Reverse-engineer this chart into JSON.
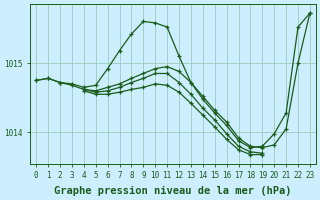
{
  "title": "Graphe pression niveau de la mer (hPa)",
  "bg_color": "#cceeff",
  "plot_bg_color": "#cceeff",
  "grid_color": "#99ccbb",
  "line_color": "#1a5c1a",
  "marker_color": "#1a5c1a",
  "xlim": [
    -0.5,
    23.5
  ],
  "ylim": [
    1013.55,
    1015.85
  ],
  "yticks": [
    1014,
    1015
  ],
  "xticks": [
    0,
    1,
    2,
    3,
    4,
    5,
    6,
    7,
    8,
    9,
    10,
    11,
    12,
    13,
    14,
    15,
    16,
    17,
    18,
    19,
    20,
    21,
    22,
    23
  ],
  "series": [
    {
      "x": [
        0,
        1,
        2,
        3,
        4,
        5,
        6,
        7,
        8,
        9,
        10,
        11,
        12,
        13,
        14,
        15,
        16,
        17,
        18,
        19,
        20,
        21,
        22,
        23
      ],
      "y": [
        1014.75,
        1014.78,
        1014.72,
        1014.7,
        1014.65,
        1014.68,
        1014.92,
        1015.18,
        1015.42,
        1015.6,
        1015.58,
        1015.52,
        1015.1,
        1014.72,
        1014.48,
        1014.28,
        1014.1,
        1013.88,
        1013.78,
        1013.8,
        1013.98,
        1014.28,
        1015.52,
        1015.72
      ]
    },
    {
      "x": [
        0,
        1,
        2,
        3,
        4,
        5,
        6,
        7,
        8,
        9,
        10,
        11,
        12,
        13,
        14,
        15,
        16,
        17,
        18,
        19,
        20,
        21,
        22,
        23
      ],
      "y": [
        1014.75,
        1014.78,
        1014.72,
        1014.68,
        1014.62,
        1014.6,
        1014.65,
        1014.7,
        1014.78,
        1014.85,
        1014.92,
        1014.95,
        1014.88,
        1014.72,
        1014.52,
        1014.32,
        1014.15,
        1013.92,
        1013.8,
        1013.78,
        1013.82,
        1014.05,
        1015.0,
        1015.72
      ]
    },
    {
      "x": [
        4,
        5,
        6,
        7,
        8,
        9,
        10,
        11,
        12,
        13,
        14,
        15,
        16,
        17,
        18,
        19
      ],
      "y": [
        1014.62,
        1014.58,
        1014.6,
        1014.65,
        1014.72,
        1014.78,
        1014.85,
        1014.85,
        1014.72,
        1014.55,
        1014.35,
        1014.18,
        1013.98,
        1013.8,
        1013.72,
        1013.7
      ]
    },
    {
      "x": [
        4,
        5,
        6,
        7,
        8,
        9,
        10,
        11,
        12,
        13,
        14,
        15,
        16,
        17,
        18,
        19
      ],
      "y": [
        1014.6,
        1014.55,
        1014.55,
        1014.58,
        1014.62,
        1014.65,
        1014.7,
        1014.68,
        1014.58,
        1014.42,
        1014.25,
        1014.08,
        1013.9,
        1013.75,
        1013.68,
        1013.68
      ]
    }
  ],
  "title_fontsize": 7.5,
  "tick_fontsize": 5.5,
  "line_width": 0.9,
  "marker_size": 2.5,
  "marker_style": "+"
}
